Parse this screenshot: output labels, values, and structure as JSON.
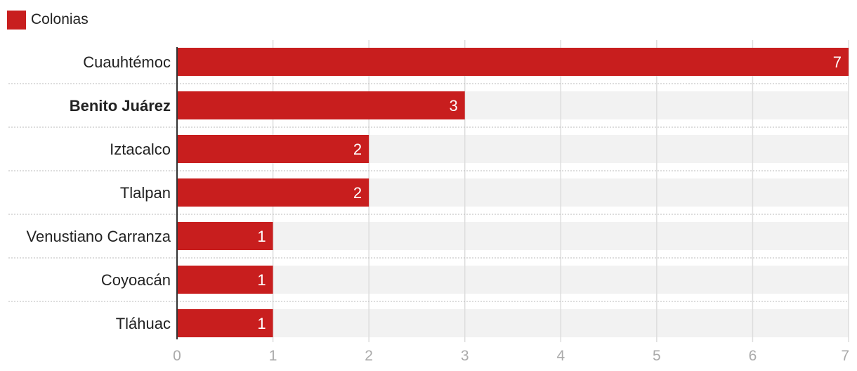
{
  "colors": {
    "bar": "#c81e1e",
    "track": "#f2f2f2",
    "grid": "#dddddd",
    "separator": "#bbbbbb",
    "axis": "#333333"
  },
  "chart_data": {
    "type": "bar",
    "orientation": "horizontal",
    "categories": [
      "Cuauhtémoc",
      "Benito Juárez",
      "Iztacalco",
      "Tlalpan",
      "Venustiano Carranza",
      "Coyoacán",
      "Tláhuac"
    ],
    "highlighted_category": "Benito Juárez",
    "series": [
      {
        "name": "Colonias",
        "values": [
          7,
          3,
          2,
          2,
          1,
          1,
          1
        ]
      }
    ],
    "xlim": [
      0,
      7
    ],
    "ticks": [
      0,
      1,
      2,
      3,
      4,
      5,
      6,
      7
    ],
    "legend_position": "top-left",
    "grid": true
  }
}
